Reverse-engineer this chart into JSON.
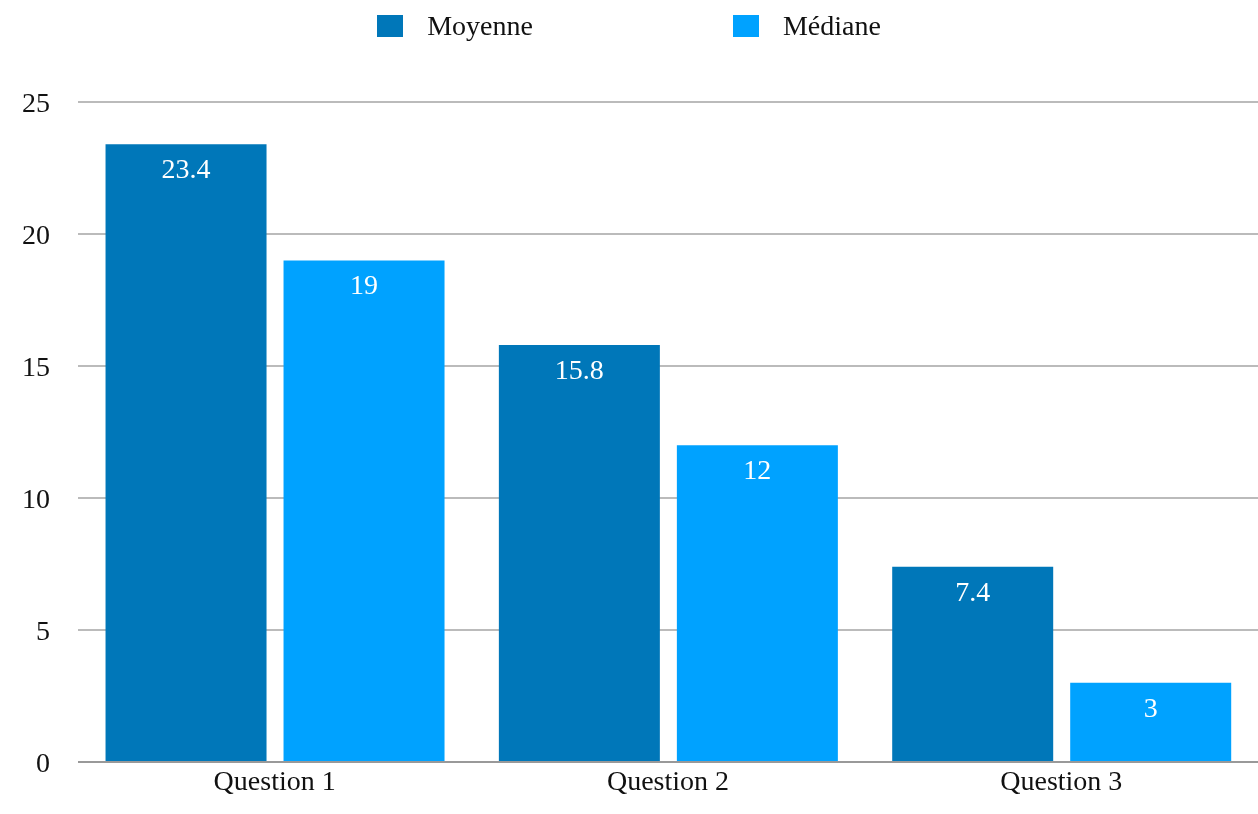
{
  "chart_data": {
    "type": "bar",
    "categories": [
      "Question 1",
      "Question 2",
      "Question 3"
    ],
    "series": [
      {
        "name": "Moyenne",
        "color": "#0077b9",
        "values": [
          23.4,
          15.8,
          7.4
        ]
      },
      {
        "name": "Médiane",
        "color": "#00a2ff",
        "values": [
          19,
          12,
          3
        ]
      }
    ],
    "ylim": [
      0,
      25
    ],
    "yticks": [
      0,
      5,
      10,
      15,
      20,
      25
    ],
    "grid": "y",
    "legend": "top",
    "data_labels": true
  }
}
